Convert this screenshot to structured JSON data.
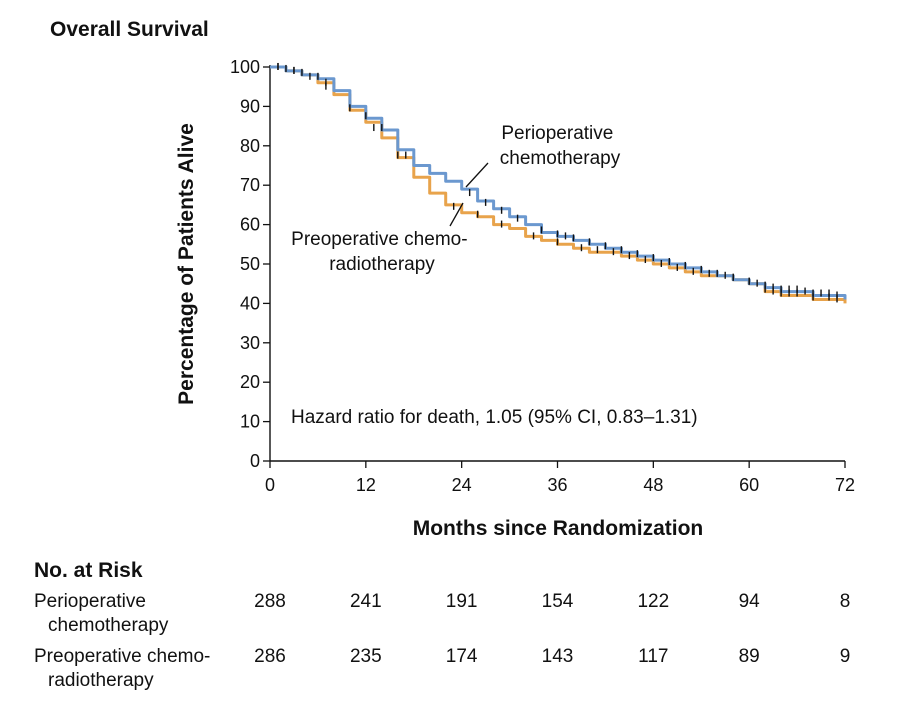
{
  "chart_data": {
    "type": "line",
    "subtype": "kaplan-meier",
    "title": "Overall Survival",
    "xlabel": "Months since Randomization",
    "ylabel": "Percentage of Patients Alive",
    "xlim": [
      0,
      72
    ],
    "ylim": [
      0,
      100
    ],
    "x_ticks": [
      0,
      12,
      24,
      36,
      48,
      60,
      72
    ],
    "y_ticks": [
      0,
      10,
      20,
      30,
      40,
      50,
      60,
      70,
      80,
      90,
      100
    ],
    "grid": false,
    "annotation": "Hazard ratio for death, 1.05 (95% CI, 0.83–1.31)",
    "series": [
      {
        "name": "Perioperative chemotherapy",
        "label_lines": [
          "Perioperative",
          "chemotherapy"
        ],
        "color": "#6b98cf",
        "points": [
          [
            0,
            100
          ],
          [
            2,
            99
          ],
          [
            4,
            98
          ],
          [
            6,
            97
          ],
          [
            8,
            94
          ],
          [
            10,
            90
          ],
          [
            12,
            87
          ],
          [
            14,
            84
          ],
          [
            16,
            79
          ],
          [
            18,
            75
          ],
          [
            20,
            73
          ],
          [
            22,
            71
          ],
          [
            24,
            69
          ],
          [
            26,
            66
          ],
          [
            28,
            64
          ],
          [
            30,
            62
          ],
          [
            32,
            60
          ],
          [
            34,
            58
          ],
          [
            36,
            57
          ],
          [
            38,
            56
          ],
          [
            40,
            55
          ],
          [
            42,
            54
          ],
          [
            44,
            53
          ],
          [
            46,
            52
          ],
          [
            48,
            51
          ],
          [
            50,
            50
          ],
          [
            52,
            49
          ],
          [
            54,
            48
          ],
          [
            56,
            47
          ],
          [
            58,
            46
          ],
          [
            60,
            45
          ],
          [
            62,
            44
          ],
          [
            64,
            43
          ],
          [
            66,
            43
          ],
          [
            68,
            42
          ],
          [
            70,
            42
          ],
          [
            72,
            41
          ]
        ],
        "censor_x": [
          1,
          2,
          3,
          4,
          6,
          7,
          12,
          14,
          17,
          25,
          27,
          29,
          31,
          34,
          36,
          37,
          38,
          40,
          42,
          44,
          46,
          48,
          50,
          52,
          54,
          56,
          57,
          58,
          60,
          61,
          62,
          63,
          64,
          65,
          66,
          67,
          68,
          69,
          70,
          71
        ]
      },
      {
        "name": "Preoperative chemo-radiotherapy",
        "label_lines": [
          "Preoperative chemo-",
          "radiotherapy"
        ],
        "color": "#e8a34b",
        "points": [
          [
            0,
            100
          ],
          [
            2,
            99
          ],
          [
            4,
            98
          ],
          [
            6,
            96
          ],
          [
            8,
            93
          ],
          [
            10,
            89
          ],
          [
            12,
            86
          ],
          [
            14,
            82
          ],
          [
            16,
            77
          ],
          [
            18,
            72
          ],
          [
            20,
            68
          ],
          [
            22,
            65
          ],
          [
            24,
            63
          ],
          [
            26,
            62
          ],
          [
            28,
            60
          ],
          [
            30,
            59
          ],
          [
            32,
            57
          ],
          [
            34,
            56
          ],
          [
            36,
            55
          ],
          [
            38,
            54
          ],
          [
            40,
            53
          ],
          [
            42,
            53
          ],
          [
            44,
            52
          ],
          [
            46,
            51
          ],
          [
            48,
            50
          ],
          [
            50,
            49
          ],
          [
            52,
            48
          ],
          [
            54,
            47
          ],
          [
            56,
            47
          ],
          [
            58,
            46
          ],
          [
            60,
            45
          ],
          [
            62,
            43
          ],
          [
            64,
            42
          ],
          [
            66,
            42
          ],
          [
            68,
            41
          ],
          [
            70,
            41
          ],
          [
            72,
            40
          ]
        ],
        "censor_x": [
          1,
          3,
          5,
          7,
          10,
          13,
          16,
          23,
          26,
          29,
          33,
          36,
          39,
          41,
          43,
          45,
          47,
          49,
          51,
          53,
          55,
          58,
          60,
          62,
          63,
          64,
          65,
          66,
          68,
          70,
          71
        ]
      }
    ]
  },
  "risk_table": {
    "title": "No. at Risk",
    "rows": [
      {
        "label_lines": [
          "Perioperative",
          "chemotherapy"
        ],
        "values": [
          "288",
          "241",
          "191",
          "154",
          "122",
          "94",
          "8"
        ]
      },
      {
        "label_lines": [
          "Preoperative chemo-",
          "radiotherapy"
        ],
        "values": [
          "286",
          "235",
          "174",
          "143",
          "117",
          "89",
          "9"
        ]
      }
    ]
  }
}
